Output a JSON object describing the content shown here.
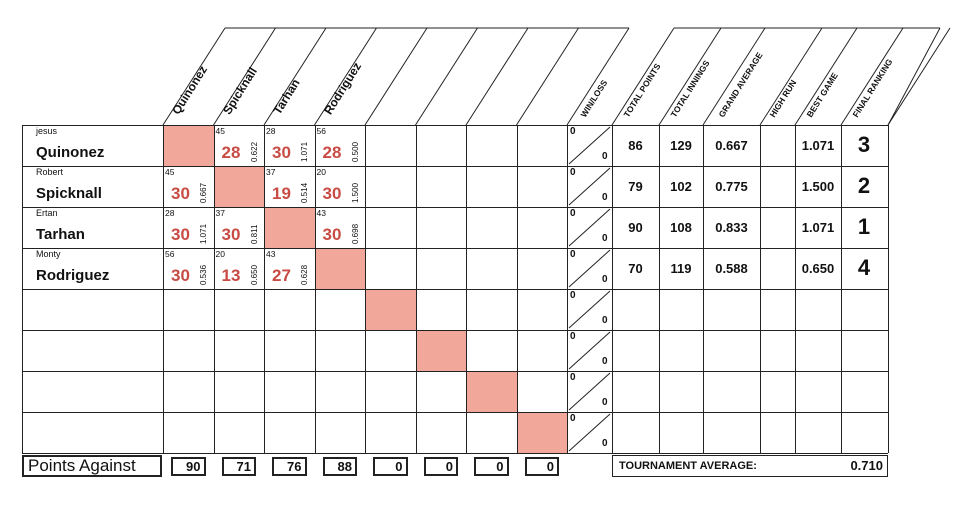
{
  "players": [
    {
      "first": "jesus",
      "last": "Quinonez",
      "wl_top": "0",
      "wl_bottom": "0",
      "total_points": "86",
      "total_innings": "129",
      "grand_average": "0.667",
      "high_run": "",
      "best_game": "1.071",
      "final_ranking": "3"
    },
    {
      "first": "Robert",
      "last": "Spicknall",
      "wl_top": "0",
      "wl_bottom": "0",
      "total_points": "79",
      "total_innings": "102",
      "grand_average": "0.775",
      "high_run": "",
      "best_game": "1.500",
      "final_ranking": "2"
    },
    {
      "first": "Ertan",
      "last": "Tarhan",
      "wl_top": "0",
      "wl_bottom": "0",
      "total_points": "90",
      "total_innings": "108",
      "grand_average": "0.833",
      "high_run": "",
      "best_game": "1.071",
      "final_ranking": "1"
    },
    {
      "first": "Monty",
      "last": "Rodriguez",
      "wl_top": "0",
      "wl_bottom": "0",
      "total_points": "70",
      "total_innings": "119",
      "grand_average": "0.588",
      "high_run": "",
      "best_game": "0.650",
      "final_ranking": "4"
    }
  ],
  "empty_rows": [
    {
      "wl_top": "0",
      "wl_bottom": "0"
    },
    {
      "wl_top": "0",
      "wl_bottom": "0"
    },
    {
      "wl_top": "0",
      "wl_bottom": "0"
    },
    {
      "wl_top": "0",
      "wl_bottom": "0"
    }
  ],
  "column_headers": [
    "Quinonez",
    "Spicknall",
    "Tarhan",
    "Rodriguez",
    "",
    "",
    "",
    ""
  ],
  "stat_headers": [
    "WIN/LOSS",
    "TOTAL POINTS",
    "TOTAL INNINGS",
    "GRAND AVERAGE",
    "HIGH RUN",
    "BEST GAME",
    "FINAL RANKING"
  ],
  "games": [
    {
      "row": 0,
      "col": 1,
      "innings": "45",
      "score": "28",
      "average": "0.622"
    },
    {
      "row": 0,
      "col": 2,
      "innings": "28",
      "score": "30",
      "average": "1.071"
    },
    {
      "row": 0,
      "col": 3,
      "innings": "56",
      "score": "28",
      "average": "0.500"
    },
    {
      "row": 1,
      "col": 0,
      "innings": "45",
      "score": "30",
      "average": "0.667"
    },
    {
      "row": 1,
      "col": 2,
      "innings": "37",
      "score": "19",
      "average": "0.514"
    },
    {
      "row": 1,
      "col": 3,
      "innings": "20",
      "score": "30",
      "average": "1.500"
    },
    {
      "row": 2,
      "col": 0,
      "innings": "28",
      "score": "30",
      "average": "1.071"
    },
    {
      "row": 2,
      "col": 1,
      "innings": "37",
      "score": "30",
      "average": "0.811"
    },
    {
      "row": 2,
      "col": 3,
      "innings": "43",
      "score": "30",
      "average": "0.698"
    },
    {
      "row": 3,
      "col": 0,
      "innings": "56",
      "score": "30",
      "average": "0.536"
    },
    {
      "row": 3,
      "col": 1,
      "innings": "20",
      "score": "13",
      "average": "0.650"
    },
    {
      "row": 3,
      "col": 2,
      "innings": "43",
      "score": "27",
      "average": "0.628"
    }
  ],
  "footer": {
    "points_against_label": "Points Against",
    "points_against": [
      "90",
      "71",
      "76",
      "88",
      "0",
      "0",
      "0",
      "0"
    ],
    "tournament_average_label": "TOURNAMENT AVERAGE:",
    "tournament_average": "0.710"
  },
  "colors": {
    "diagonal_fill": "#f2a79b",
    "score_color": "#c84b44",
    "line": "#222222"
  }
}
